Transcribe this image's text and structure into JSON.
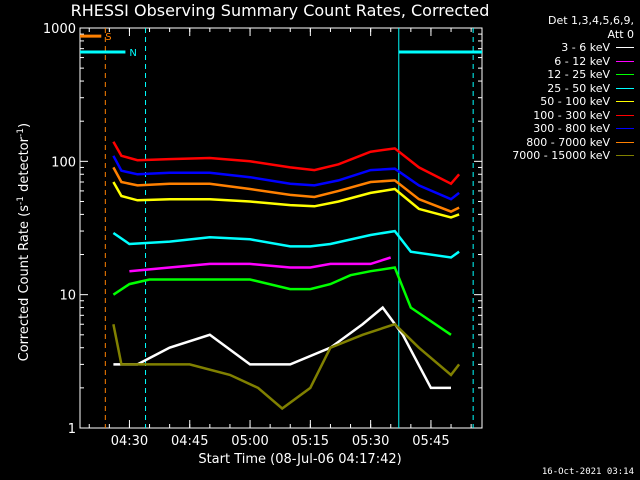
{
  "chart_data": {
    "type": "line",
    "title": "RHESSI Observing Summary Count Rates, Corrected",
    "xlabel": "Start Time (08-Jul-06 04:17:42)",
    "ylabel_parts": [
      "Corrected Count Rate (s",
      "-1",
      " detector",
      "-1",
      ")"
    ],
    "yscale": "log",
    "ylim": [
      1,
      1000
    ],
    "yticks": [
      {
        "v": 1,
        "t": "1"
      },
      {
        "v": 10,
        "t": "10"
      },
      {
        "v": 100,
        "t": "100"
      },
      {
        "v": 1000,
        "t": "1000"
      }
    ],
    "xlim": [
      "04:17:42",
      "05:57:42"
    ],
    "xticks": [
      "04:30",
      "04:45",
      "05:00",
      "05:15",
      "05:30",
      "05:45"
    ],
    "legend_header": [
      "Det 1,3,4,5,6,9,",
      "Att 0"
    ],
    "series": [
      {
        "name": "3 - 6 keV",
        "color": "#ffffff",
        "points": [
          [
            "04:26",
            3
          ],
          [
            "04:32",
            3
          ],
          [
            "04:40",
            4
          ],
          [
            "04:50",
            5
          ],
          [
            "05:00",
            3
          ],
          [
            "05:10",
            3
          ],
          [
            "05:20",
            4
          ],
          [
            "05:28",
            6
          ],
          [
            "05:33",
            8
          ],
          [
            "05:38",
            5
          ],
          [
            "05:45",
            2
          ],
          [
            "05:50",
            2
          ]
        ]
      },
      {
        "name": "6 - 12 keV",
        "color": "#ff00ff",
        "points": [
          [
            "04:30",
            15
          ],
          [
            "04:40",
            16
          ],
          [
            "04:50",
            17
          ],
          [
            "05:00",
            17
          ],
          [
            "05:10",
            16
          ],
          [
            "05:15",
            16
          ],
          [
            "05:20",
            17
          ],
          [
            "05:30",
            17
          ],
          [
            "05:35",
            19
          ]
        ]
      },
      {
        "name": "12 - 25 keV",
        "color": "#00ff00",
        "points": [
          [
            "04:26",
            10
          ],
          [
            "04:30",
            12
          ],
          [
            "04:35",
            13
          ],
          [
            "04:45",
            13
          ],
          [
            "05:00",
            13
          ],
          [
            "05:10",
            11
          ],
          [
            "05:15",
            11
          ],
          [
            "05:20",
            12
          ],
          [
            "05:25",
            14
          ],
          [
            "05:30",
            15
          ],
          [
            "05:36",
            16
          ],
          [
            "05:40",
            8
          ],
          [
            "05:50",
            5
          ]
        ]
      },
      {
        "name": "25 - 50 keV",
        "color": "#00ffff",
        "points": [
          [
            "04:26",
            29
          ],
          [
            "04:30",
            24
          ],
          [
            "04:40",
            25
          ],
          [
            "04:50",
            27
          ],
          [
            "05:00",
            26
          ],
          [
            "05:10",
            23
          ],
          [
            "05:15",
            23
          ],
          [
            "05:20",
            24
          ],
          [
            "05:30",
            28
          ],
          [
            "05:36",
            30
          ],
          [
            "05:40",
            21
          ],
          [
            "05:50",
            19
          ],
          [
            "05:52",
            21
          ]
        ]
      },
      {
        "name": "50 - 100 keV",
        "color": "#ffff00",
        "points": [
          [
            "04:26",
            70
          ],
          [
            "04:28",
            55
          ],
          [
            "04:32",
            51
          ],
          [
            "04:40",
            52
          ],
          [
            "04:50",
            52
          ],
          [
            "05:00",
            50
          ],
          [
            "05:10",
            47
          ],
          [
            "05:16",
            46
          ],
          [
            "05:22",
            50
          ],
          [
            "05:30",
            58
          ],
          [
            "05:36",
            62
          ],
          [
            "05:42",
            44
          ],
          [
            "05:50",
            38
          ],
          [
            "05:52",
            40
          ]
        ]
      },
      {
        "name": "100 - 300 keV",
        "color": "#ff0000",
        "points": [
          [
            "04:26",
            140
          ],
          [
            "04:28",
            110
          ],
          [
            "04:32",
            102
          ],
          [
            "04:40",
            104
          ],
          [
            "04:50",
            106
          ],
          [
            "05:00",
            100
          ],
          [
            "05:10",
            90
          ],
          [
            "05:16",
            86
          ],
          [
            "05:22",
            95
          ],
          [
            "05:30",
            118
          ],
          [
            "05:36",
            125
          ],
          [
            "05:42",
            90
          ],
          [
            "05:50",
            68
          ],
          [
            "05:52",
            80
          ]
        ]
      },
      {
        "name": "300 - 800 keV",
        "color": "#0000ff",
        "points": [
          [
            "04:26",
            110
          ],
          [
            "04:28",
            85
          ],
          [
            "04:32",
            80
          ],
          [
            "04:40",
            82
          ],
          [
            "04:50",
            82
          ],
          [
            "05:00",
            76
          ],
          [
            "05:10",
            68
          ],
          [
            "05:16",
            66
          ],
          [
            "05:22",
            72
          ],
          [
            "05:30",
            86
          ],
          [
            "05:36",
            88
          ],
          [
            "05:42",
            66
          ],
          [
            "05:50",
            52
          ],
          [
            "05:52",
            58
          ]
        ]
      },
      {
        "name": "800 - 7000 keV",
        "color": "#ff8000",
        "points": [
          [
            "04:26",
            90
          ],
          [
            "04:28",
            70
          ],
          [
            "04:32",
            66
          ],
          [
            "04:40",
            68
          ],
          [
            "04:50",
            68
          ],
          [
            "05:00",
            62
          ],
          [
            "05:10",
            56
          ],
          [
            "05:16",
            54
          ],
          [
            "05:22",
            60
          ],
          [
            "05:30",
            70
          ],
          [
            "05:36",
            72
          ],
          [
            "05:42",
            52
          ],
          [
            "05:50",
            42
          ],
          [
            "05:52",
            45
          ]
        ]
      },
      {
        "name": "7000 - 15000 keV",
        "color": "#808000",
        "points": [
          [
            "04:26",
            6
          ],
          [
            "04:28",
            3
          ],
          [
            "04:35",
            3
          ],
          [
            "04:45",
            3
          ],
          [
            "04:55",
            2.5
          ],
          [
            "05:02",
            2
          ],
          [
            "05:08",
            1.4
          ],
          [
            "05:15",
            2
          ],
          [
            "05:20",
            4
          ],
          [
            "05:28",
            5
          ],
          [
            "05:36",
            6
          ],
          [
            "05:42",
            4
          ],
          [
            "05:50",
            2.5
          ],
          [
            "05:52",
            3
          ]
        ]
      }
    ],
    "flag_bars": [
      {
        "label": "S",
        "color": "#ff8000",
        "start": "04:17:42",
        "end": "04:23:00",
        "level": 870
      },
      {
        "label": "N",
        "color": "#00ffff",
        "start": "04:17:42",
        "end": "04:29:00",
        "level": 660
      },
      {
        "label": "",
        "color": "#00ffff",
        "start": "05:37:00",
        "end": "05:57:42",
        "level": 660
      }
    ],
    "markers": [
      {
        "color": "#ff8000",
        "time": "04:24:00",
        "style": "dashed"
      },
      {
        "color": "#00ffff",
        "time": "04:34:00",
        "style": "dashed"
      },
      {
        "color": "#00ffff",
        "time": "05:37:00",
        "style": "solid"
      },
      {
        "color": "#00ffff",
        "time": "05:55:30",
        "style": "dashed"
      }
    ],
    "grid": false,
    "legend_position": "top-right"
  },
  "timestamp": "16-Oct-2021 03:14"
}
